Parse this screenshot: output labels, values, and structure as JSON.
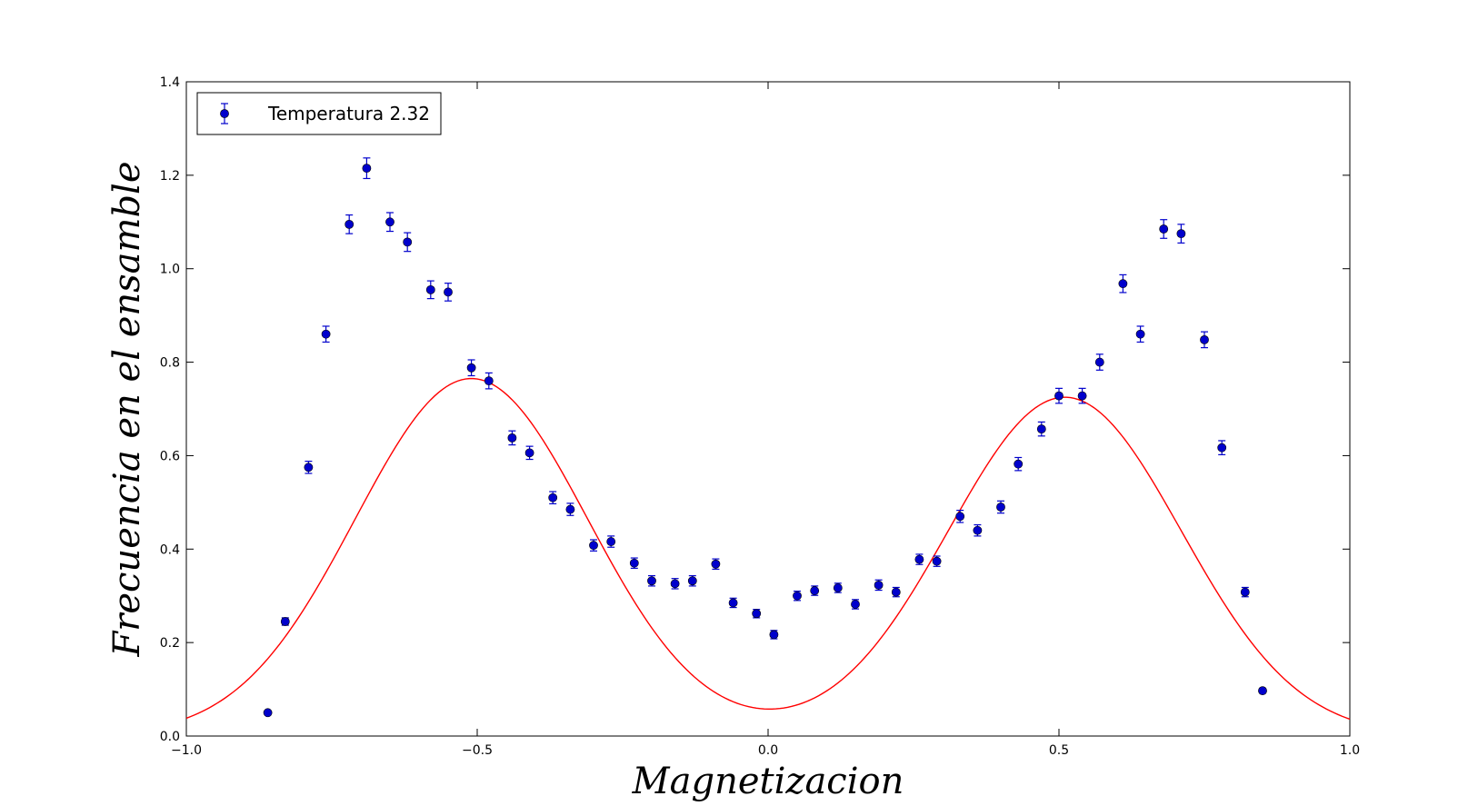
{
  "chart_data": {
    "type": "scatter",
    "xlabel": "Magnetizacion",
    "ylabel": "Frecuencia en el ensamble",
    "xlim": [
      -1.0,
      1.0
    ],
    "ylim": [
      0.0,
      1.4
    ],
    "xticks": [
      "−1.0",
      "−0.5",
      "0.0",
      "0.5",
      "1.0"
    ],
    "xtick_values": [
      -1.0,
      -0.5,
      0.0,
      0.5,
      1.0
    ],
    "yticks": [
      "0.0",
      "0.2",
      "0.4",
      "0.6",
      "0.8",
      "1.0",
      "1.2",
      "1.4"
    ],
    "ytick_values": [
      0.0,
      0.2,
      0.4,
      0.6,
      0.8,
      1.0,
      1.2,
      1.4
    ],
    "grid": false,
    "legend_position": "top-left",
    "series": [
      {
        "name": "Temperatura 2.32",
        "type": "errorbar-scatter",
        "color": "#0000cc",
        "points": [
          {
            "x": -0.86,
            "y": 0.05,
            "err": 0.0
          },
          {
            "x": -0.83,
            "y": 0.245,
            "err": 0.008
          },
          {
            "x": -0.79,
            "y": 0.575,
            "err": 0.013
          },
          {
            "x": -0.76,
            "y": 0.86,
            "err": 0.017
          },
          {
            "x": -0.72,
            "y": 1.095,
            "err": 0.02
          },
          {
            "x": -0.69,
            "y": 1.215,
            "err": 0.022
          },
          {
            "x": -0.65,
            "y": 1.1,
            "err": 0.02
          },
          {
            "x": -0.62,
            "y": 1.057,
            "err": 0.02
          },
          {
            "x": -0.58,
            "y": 0.955,
            "err": 0.019
          },
          {
            "x": -0.55,
            "y": 0.95,
            "err": 0.019
          },
          {
            "x": -0.51,
            "y": 0.788,
            "err": 0.017
          },
          {
            "x": -0.48,
            "y": 0.76,
            "err": 0.017
          },
          {
            "x": -0.44,
            "y": 0.638,
            "err": 0.015
          },
          {
            "x": -0.41,
            "y": 0.606,
            "err": 0.014
          },
          {
            "x": -0.37,
            "y": 0.51,
            "err": 0.013
          },
          {
            "x": -0.34,
            "y": 0.485,
            "err": 0.013
          },
          {
            "x": -0.3,
            "y": 0.408,
            "err": 0.012
          },
          {
            "x": -0.27,
            "y": 0.416,
            "err": 0.012
          },
          {
            "x": -0.23,
            "y": 0.37,
            "err": 0.011
          },
          {
            "x": -0.2,
            "y": 0.332,
            "err": 0.011
          },
          {
            "x": -0.16,
            "y": 0.326,
            "err": 0.011
          },
          {
            "x": -0.13,
            "y": 0.332,
            "err": 0.011
          },
          {
            "x": -0.09,
            "y": 0.368,
            "err": 0.011
          },
          {
            "x": -0.06,
            "y": 0.285,
            "err": 0.01
          },
          {
            "x": -0.02,
            "y": 0.262,
            "err": 0.009
          },
          {
            "x": 0.01,
            "y": 0.217,
            "err": 0.009
          },
          {
            "x": 0.05,
            "y": 0.3,
            "err": 0.01
          },
          {
            "x": 0.08,
            "y": 0.311,
            "err": 0.01
          },
          {
            "x": 0.12,
            "y": 0.317,
            "err": 0.01
          },
          {
            "x": 0.15,
            "y": 0.282,
            "err": 0.01
          },
          {
            "x": 0.19,
            "y": 0.323,
            "err": 0.011
          },
          {
            "x": 0.22,
            "y": 0.308,
            "err": 0.01
          },
          {
            "x": 0.26,
            "y": 0.378,
            "err": 0.011
          },
          {
            "x": 0.29,
            "y": 0.374,
            "err": 0.011
          },
          {
            "x": 0.33,
            "y": 0.47,
            "err": 0.013
          },
          {
            "x": 0.36,
            "y": 0.44,
            "err": 0.012
          },
          {
            "x": 0.4,
            "y": 0.49,
            "err": 0.013
          },
          {
            "x": 0.43,
            "y": 0.582,
            "err": 0.014
          },
          {
            "x": 0.47,
            "y": 0.657,
            "err": 0.015
          },
          {
            "x": 0.5,
            "y": 0.728,
            "err": 0.016
          },
          {
            "x": 0.54,
            "y": 0.728,
            "err": 0.016
          },
          {
            "x": 0.57,
            "y": 0.8,
            "err": 0.017
          },
          {
            "x": 0.61,
            "y": 0.968,
            "err": 0.019
          },
          {
            "x": 0.64,
            "y": 0.86,
            "err": 0.017
          },
          {
            "x": 0.68,
            "y": 1.085,
            "err": 0.02
          },
          {
            "x": 0.71,
            "y": 1.075,
            "err": 0.02
          },
          {
            "x": 0.75,
            "y": 0.848,
            "err": 0.017
          },
          {
            "x": 0.78,
            "y": 0.617,
            "err": 0.015
          },
          {
            "x": 0.82,
            "y": 0.308,
            "err": 0.01
          },
          {
            "x": 0.85,
            "y": 0.097,
            "err": 0.0
          }
        ]
      },
      {
        "name": "",
        "type": "line",
        "color": "#ff0000",
        "model": {
          "form": "sum of two gaussians",
          "components": [
            {
              "amplitude": 0.765,
              "mean": -0.51,
              "sigma": 0.2
            },
            {
              "amplitude": 0.725,
              "mean": 0.51,
              "sigma": 0.2
            }
          ],
          "samples": 300
        }
      }
    ]
  }
}
